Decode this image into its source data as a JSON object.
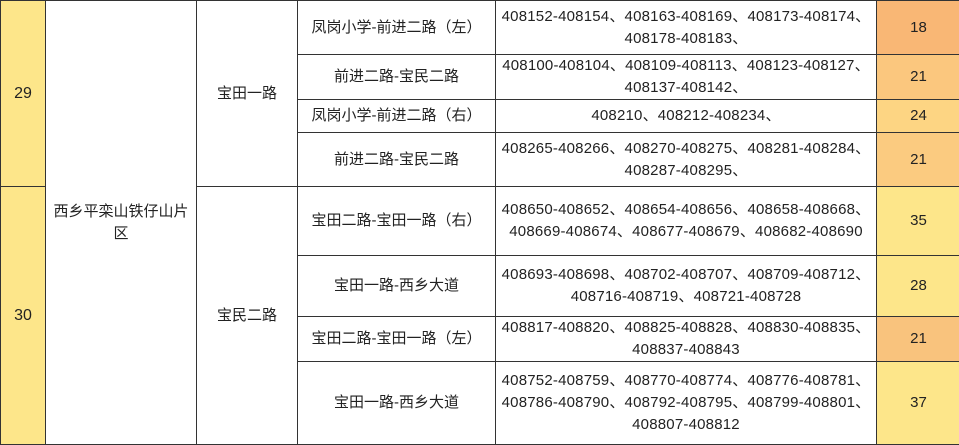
{
  "colors": {
    "index_bg": "#FDE68A",
    "count_low": "#F9B775",
    "count_mid": "#FBC77E",
    "count_high": "#FDE68A"
  },
  "area": "西乡平栾山铁仔山片区",
  "groups": [
    {
      "no": "29",
      "road": "宝田一路",
      "rows": [
        {
          "section": "凤岗小学-前进二路（左）",
          "codes": "408152-408154、408163-408169、408173-408174、408178-408183、",
          "count": "18",
          "color": "#F9B775"
        },
        {
          "section": "前进二路-宝民二路",
          "codes": "408100-408104、408109-408113、408123-408127、408137-408142、",
          "count": "21",
          "color": "#FBC77E"
        },
        {
          "section": "凤岗小学-前进二路（右）",
          "codes": "408210、408212-408234、",
          "count": "24",
          "color": "#FDD583"
        },
        {
          "section": "前进二路-宝民二路",
          "codes": "408265-408266、408270-408275、408281-408284、408287-408295、",
          "count": "21",
          "color": "#FBCB80"
        }
      ]
    },
    {
      "no": "30",
      "road": "宝民二路",
      "rows": [
        {
          "section": "宝田二路-宝田一路（右）",
          "codes": "408650-408652、408654-408656、408658-408668、408669-408674、408677-408679、408682-408690",
          "count": "35",
          "color": "#FDE68A"
        },
        {
          "section": "宝田一路-西乡大道",
          "codes": "408693-408698、408702-408707、408709-408712、408716-408719、408721-408728",
          "count": "28",
          "color": "#FDE68A"
        },
        {
          "section": "宝田二路-宝田一路（左）",
          "codes": "408817-408820、408825-408828、408830-408835、408837-408843",
          "count": "21",
          "color": "#F9C37D"
        },
        {
          "section": "宝田一路-西乡大道",
          "codes": "408752-408759、408770-408774、408776-408781、408786-408790、408792-408795、408799-408801、408807-408812",
          "count": "37",
          "color": "#FDE68A"
        }
      ]
    }
  ]
}
